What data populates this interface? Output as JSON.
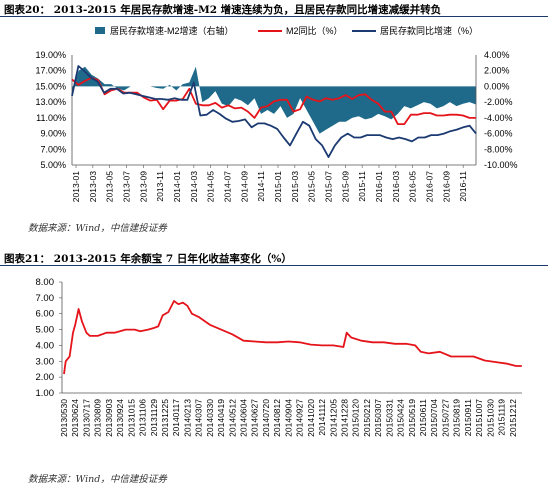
{
  "figure1": {
    "title": "图表20： 2013-2015 年居民存款增速-M2 增速连续为负，且居民存款同比增速减缓并转负",
    "source": "数据来源：Wind，中信建投证券"
  },
  "figure2": {
    "title": "图表21： 2013-2015 年余额宝 7 日年化收益率变化（%）",
    "source": "数据来源：Wind，中信建投证券"
  },
  "chart_data": [
    {
      "type": "line",
      "title": "",
      "legend_position": "top",
      "x_ticks": [
        "2013-01",
        "2013-03",
        "2013-05",
        "2013-07",
        "2013-09",
        "2013-11",
        "2014-01",
        "2014-03",
        "2014-05",
        "2014-07",
        "2014-09",
        "2014-11",
        "2015-01",
        "2015-03",
        "2015-05",
        "2015-07",
        "2015-09",
        "2015-11",
        "2016-01",
        "2016-03",
        "2016-05",
        "2016-07",
        "2016-09",
        "2016-11"
      ],
      "left_axis": {
        "ticks": [
          "5.00%",
          "7.00%",
          "9.00%",
          "11.00%",
          "13.00%",
          "15.00%",
          "17.00%",
          "19.00%"
        ],
        "range": [
          5,
          19
        ]
      },
      "right_axis": {
        "ticks": [
          "4.00%",
          "2.00%",
          "0.00%",
          "-2.00%",
          "-4.00%",
          "-6.00%",
          "-8.00%",
          "-10.00%"
        ],
        "range": [
          -10,
          4
        ]
      },
      "colors": {
        "area": "#1f6a8a",
        "m2": "#e5141b",
        "deposit": "#1c3a72"
      },
      "series": [
        {
          "name": "居民存款增速-M2增速（右轴）",
          "type": "area",
          "axis": "right",
          "values": [
            -1.0,
            2.0,
            2.5,
            1.5,
            1.0,
            0.3,
            0.3,
            -0.3,
            -0.5,
            0.0,
            0.0,
            0.0,
            0.0,
            -0.2,
            -0.3,
            0.2,
            -0.5,
            0.3,
            0.5,
            2.5,
            -2.0,
            -1.5,
            -0.6,
            -2.2,
            -2.5,
            -1.5,
            -1.8,
            -2.4,
            -1.5,
            -3.5,
            -3.0,
            -3.5,
            -2.5,
            -4.0,
            -3.5,
            -1.5,
            -3.0,
            -4.5,
            -6.0,
            -5.5,
            -5.0,
            -4.5,
            -4.5,
            -4.0,
            -3.8,
            -4.2,
            -4.0,
            -3.5,
            -3.8,
            -4.2,
            -3.5,
            -2.5,
            -2.8,
            -2.4,
            -2.0,
            -2.2,
            -2.8,
            -2.5,
            -2.0,
            -2.5,
            -2.2,
            -2.0,
            -2.3
          ]
        },
        {
          "name": "M2同比（%）",
          "axis": "left",
          "values": [
            15.9,
            15.2,
            15.7,
            16.1,
            15.8,
            14.0,
            14.5,
            14.7,
            14.2,
            14.2,
            14.2,
            13.6,
            13.2,
            13.3,
            12.1,
            13.2,
            13.2,
            13.4,
            14.7,
            12.8,
            12.6,
            12.6,
            12.9,
            12.3,
            12.6,
            12.2,
            12.3,
            11.8,
            11.0,
            12.3,
            12.5,
            13.1,
            13.3,
            13.3,
            11.8,
            12.1,
            13.7,
            13.3,
            13.1,
            13.5,
            13.3,
            13.5,
            13.9,
            13.4,
            13.9,
            14.0,
            13.3,
            12.8,
            11.8,
            11.8,
            10.2,
            10.2,
            11.4,
            11.4,
            11.6,
            11.6,
            11.3,
            11.3,
            11.4,
            11.4,
            11.3,
            11.0,
            11.0
          ]
        },
        {
          "name": "居民存款同比增速（%）",
          "axis": "left",
          "values": [
            13.8,
            17.6,
            16.9,
            16.1,
            15.6,
            14.2,
            14.7,
            14.7,
            14.1,
            14.2,
            14.0,
            13.8,
            13.6,
            13.4,
            13.4,
            13.3,
            13.5,
            13.3,
            13.3,
            15.5,
            11.3,
            11.4,
            12.0,
            11.5,
            10.9,
            10.5,
            10.6,
            10.8,
            9.8,
            10.3,
            10.3,
            10.0,
            9.6,
            8.5,
            7.5,
            9.0,
            10.5,
            10.0,
            8.3,
            7.5,
            6.0,
            7.5,
            8.5,
            9.0,
            8.5,
            8.5,
            8.8,
            8.8,
            8.8,
            8.5,
            8.3,
            8.5,
            8.3,
            8.0,
            8.5,
            8.5,
            8.8,
            8.8,
            9.0,
            9.3,
            9.5,
            9.8,
            10.0,
            9.0
          ]
        }
      ]
    },
    {
      "type": "line",
      "title": "",
      "x_ticks": [
        "20130530",
        "20130624",
        "20130717",
        "20130809",
        "20130903",
        "20130924",
        "20131015",
        "20131106",
        "20131129",
        "20131225",
        "20140117",
        "20140213",
        "20140307",
        "20140330",
        "20140419",
        "20140512",
        "20140604",
        "20140627",
        "20140720",
        "20140812",
        "20140904",
        "20140927",
        "20141020",
        "20141112",
        "20141205",
        "20141228",
        "20150120",
        "20150212",
        "20150307",
        "20150331",
        "20150424",
        "20150519",
        "20150611",
        "20150704",
        "20150727",
        "20150819",
        "20150911",
        "20151007",
        "20151030",
        "20151119",
        "20151212"
      ],
      "y_axis": {
        "ticks": [
          "1.00",
          "2.00",
          "3.00",
          "4.00",
          "5.00",
          "6.00",
          "7.00",
          "8.00"
        ],
        "range": [
          1,
          8
        ]
      },
      "colors": {
        "line": "#e5141b"
      },
      "series": [
        {
          "name": "余额宝7日年化收益率",
          "points": [
            [
              0,
              2.2
            ],
            [
              0.15,
              3.0
            ],
            [
              0.5,
              3.3
            ],
            [
              0.8,
              4.8
            ],
            [
              1.0,
              5.3
            ],
            [
              1.3,
              6.3
            ],
            [
              1.6,
              5.5
            ],
            [
              2.0,
              4.8
            ],
            [
              2.3,
              4.6
            ],
            [
              3.0,
              4.6
            ],
            [
              3.8,
              4.8
            ],
            [
              4.5,
              4.8
            ],
            [
              5.5,
              5.0
            ],
            [
              6.3,
              5.0
            ],
            [
              6.8,
              4.9
            ],
            [
              7.5,
              5.0
            ],
            [
              8.0,
              5.1
            ],
            [
              8.4,
              5.2
            ],
            [
              8.8,
              5.9
            ],
            [
              9.3,
              6.1
            ],
            [
              9.8,
              6.8
            ],
            [
              10.2,
              6.6
            ],
            [
              10.6,
              6.7
            ],
            [
              11.0,
              6.5
            ],
            [
              11.4,
              6.0
            ],
            [
              12.0,
              5.8
            ],
            [
              13.0,
              5.3
            ],
            [
              14.0,
              5.0
            ],
            [
              15.0,
              4.7
            ],
            [
              16.0,
              4.3
            ],
            [
              17.0,
              4.25
            ],
            [
              18.0,
              4.2
            ],
            [
              19.0,
              4.2
            ],
            [
              20.0,
              4.25
            ],
            [
              21.0,
              4.2
            ],
            [
              22.0,
              4.05
            ],
            [
              23.0,
              4.0
            ],
            [
              24.0,
              4.0
            ],
            [
              24.9,
              3.9
            ],
            [
              25.2,
              4.8
            ],
            [
              25.6,
              4.5
            ],
            [
              26.5,
              4.3
            ],
            [
              27.5,
              4.2
            ],
            [
              28.5,
              4.2
            ],
            [
              29.5,
              4.1
            ],
            [
              30.5,
              4.1
            ],
            [
              31.3,
              4.0
            ],
            [
              31.8,
              3.6
            ],
            [
              32.5,
              3.5
            ],
            [
              33.5,
              3.6
            ],
            [
              34.5,
              3.3
            ],
            [
              35.5,
              3.3
            ],
            [
              36.5,
              3.3
            ],
            [
              37.5,
              3.05
            ],
            [
              38.5,
              2.95
            ],
            [
              39.5,
              2.85
            ],
            [
              40.3,
              2.7
            ],
            [
              40.8,
              2.7
            ]
          ]
        }
      ]
    }
  ]
}
